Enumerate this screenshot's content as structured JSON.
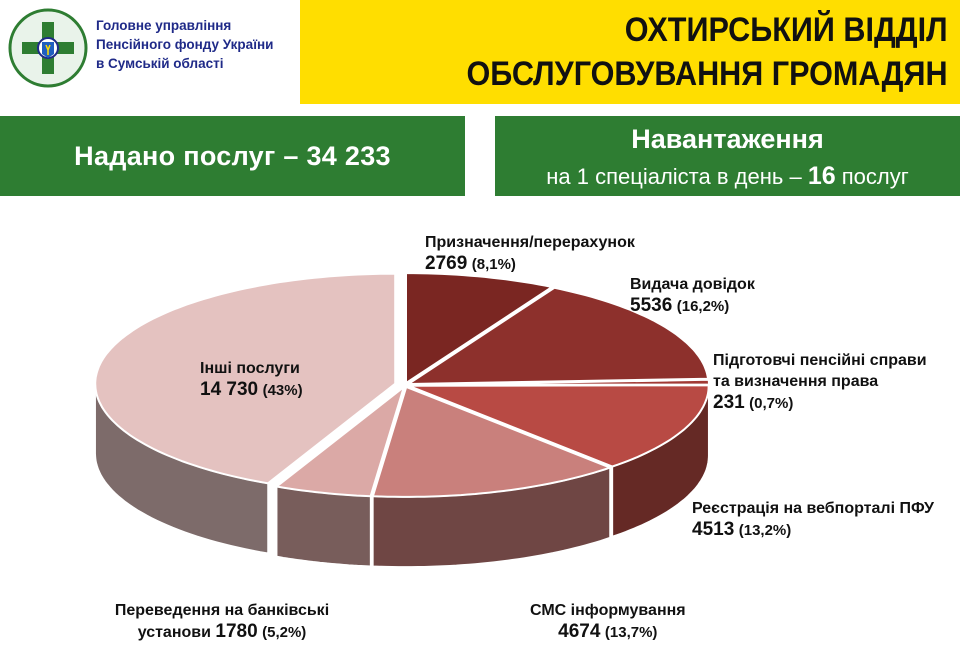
{
  "header": {
    "org_name": "Головне управління\nПенсійного фонду України\nв Сумській області",
    "title": "ОХТИРСЬКИЙ ВІДДІЛ\nОБСЛУГОВУВАННЯ ГРОМАДЯН"
  },
  "services_box": {
    "text": "Надано послуг – 34 233"
  },
  "load_box": {
    "title": "Навантаження",
    "sub_prefix": "на 1 спеціаліста в день –",
    "sub_value": "16",
    "sub_suffix": "послуг"
  },
  "colors": {
    "header_yellow": "#ffde00",
    "green": "#2e7d32",
    "org_blue": "#1f2a88"
  },
  "chart_data": {
    "type": "pie",
    "style": "3d-exploded",
    "slices": [
      {
        "label": "Призначення/перерахунок",
        "value": 2769,
        "value_text": "2769",
        "pct_text": "(8,1%)",
        "color": "#7a2622"
      },
      {
        "label": "Видача довідок",
        "value": 5536,
        "value_text": "5536",
        "pct_text": "(16,2%)",
        "color": "#8d302c"
      },
      {
        "label": "Підготовчі пенсійні справи та визначення права",
        "value": 231,
        "value_text": "231",
        "pct_text": "(0,7%)",
        "color": "#a13a35"
      },
      {
        "label": "Реєстрація на вебпорталі ПФУ",
        "value": 4513,
        "value_text": "4513",
        "pct_text": "(13,2%)",
        "color": "#b84a44"
      },
      {
        "label": "СМС інформування",
        "value": 4674,
        "value_text": "4674",
        "pct_text": "(13,7%)",
        "color": "#c9807c"
      },
      {
        "label": "Переведення на банківські установи",
        "value": 1780,
        "value_text": "1780",
        "pct_text": "(5,2%)",
        "color": "#dba9a6"
      },
      {
        "label": "Інші послуги",
        "value": 14730,
        "value_text": "14 730",
        "pct_text": "(43%)",
        "color": "#e4c2c0"
      }
    ]
  }
}
